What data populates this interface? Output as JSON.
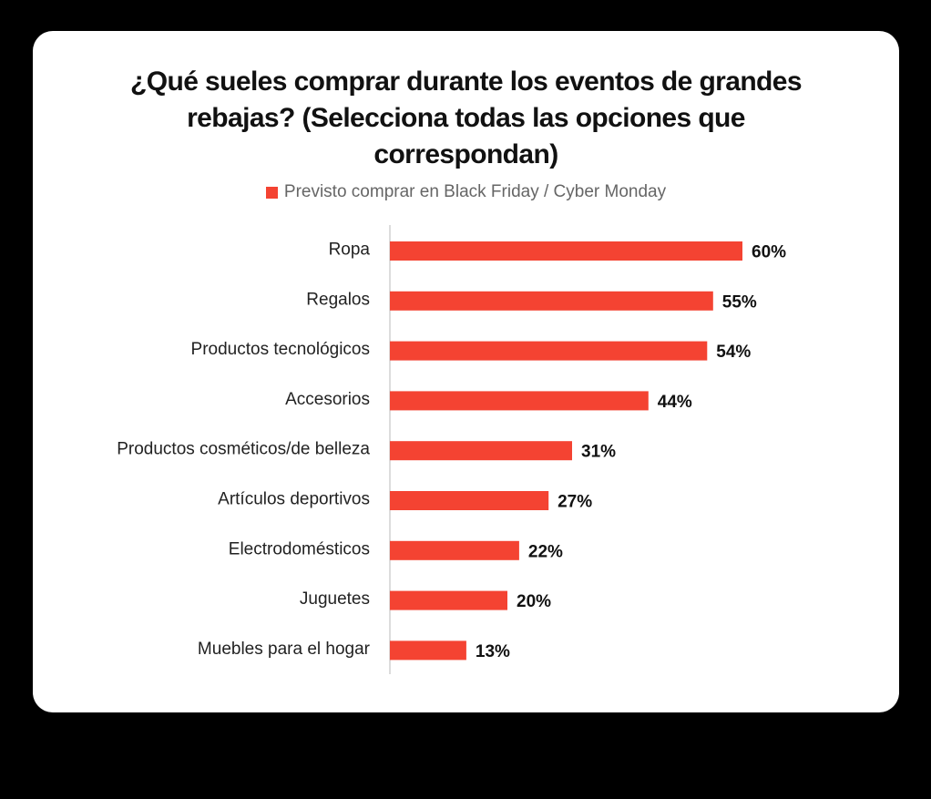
{
  "chart_data": {
    "type": "bar",
    "orientation": "horizontal",
    "title": "¿Qué sueles comprar durante los eventos de grandes rebajas? (Selecciona todas las opciones que correspondan)",
    "title_lines": [
      "¿Qué sueles comprar durante los eventos de grandes",
      "rebajas? (Selecciona todas las opciones que",
      "correspondan)"
    ],
    "legend": [
      "Previsto comprar en Black Friday / Cyber Monday"
    ],
    "legend_position": "top-center",
    "categories": [
      "Ropa",
      "Regalos",
      "Productos tecnológicos",
      "Accesorios",
      "Productos cosméticos/de belleza",
      "Artículos deportivos",
      "Electrodomésticos",
      "Juguetes",
      "Muebles para el hogar"
    ],
    "series": [
      {
        "name": "Previsto comprar en Black Friday / Cyber Monday",
        "values": [
          60,
          55,
          54,
          44,
          31,
          27,
          22,
          20,
          13
        ],
        "color": "#f44332"
      }
    ],
    "value_suffix": "%",
    "xlim": [
      0,
      60
    ],
    "grid": false,
    "xlabel": "",
    "ylabel": ""
  },
  "colors": {
    "background": "#000000",
    "card": "#ffffff",
    "bar": "#f44332",
    "axis": "#d0d0d0"
  }
}
